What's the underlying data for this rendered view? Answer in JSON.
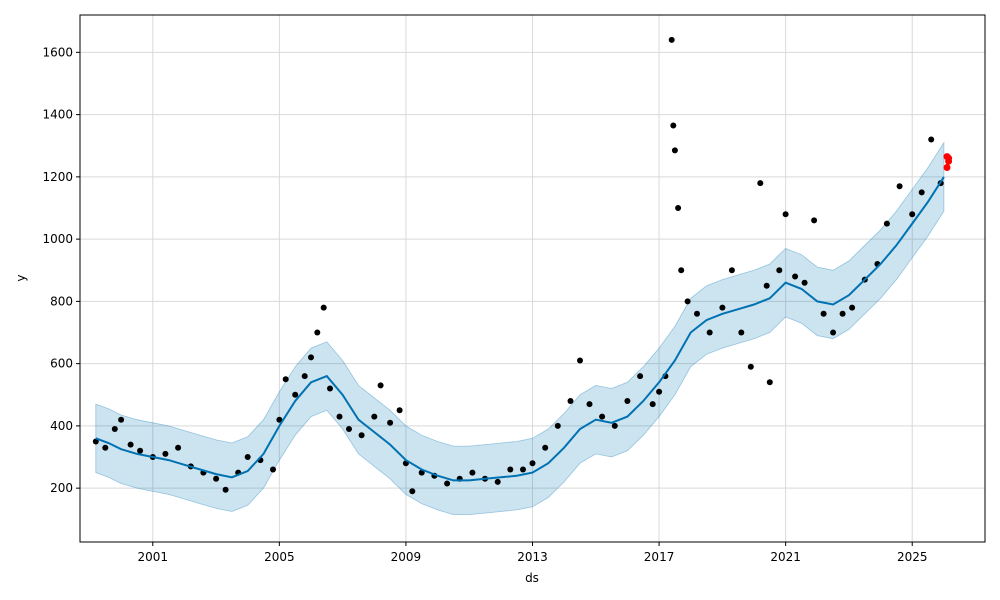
{
  "chart_data": {
    "type": "line",
    "title": "",
    "xlabel": "ds",
    "ylabel": "y",
    "xlim": [
      1998.7,
      2027.3
    ],
    "ylim": [
      27,
      1720
    ],
    "x_ticks": [
      2001,
      2005,
      2009,
      2013,
      2017,
      2021,
      2025
    ],
    "x_tick_labels": [
      "2001",
      "2005",
      "2009",
      "2013",
      "2017",
      "2021",
      "2025"
    ],
    "y_ticks": [
      200,
      400,
      600,
      800,
      1000,
      1200,
      1400,
      1600
    ],
    "y_tick_labels": [
      "200",
      "400",
      "600",
      "800",
      "1000",
      "1200",
      "1400",
      "1600"
    ],
    "grid": true,
    "colors": {
      "forecast": "#0072B2",
      "band": "#0072B2",
      "observed": "#000000",
      "highlight": "#ff0000",
      "grid": "#d9d9d9"
    },
    "forecast": {
      "x": [
        1999.2,
        1999.6,
        2000.0,
        2000.5,
        2001.0,
        2001.5,
        2002.0,
        2002.5,
        2003.0,
        2003.5,
        2004.0,
        2004.5,
        2005.0,
        2005.5,
        2006.0,
        2006.5,
        2007.0,
        2007.5,
        2008.0,
        2008.5,
        2009.0,
        2009.5,
        2010.0,
        2010.5,
        2011.0,
        2011.5,
        2012.0,
        2012.5,
        2013.0,
        2013.5,
        2014.0,
        2014.5,
        2015.0,
        2015.5,
        2016.0,
        2016.5,
        2017.0,
        2017.5,
        2018.0,
        2018.5,
        2019.0,
        2019.5,
        2020.0,
        2020.5,
        2021.0,
        2021.5,
        2022.0,
        2022.5,
        2023.0,
        2023.5,
        2024.0,
        2024.5,
        2025.0,
        2025.5,
        2026.0
      ],
      "y": [
        360,
        345,
        325,
        310,
        300,
        290,
        275,
        260,
        245,
        235,
        255,
        310,
        400,
        480,
        540,
        560,
        500,
        420,
        380,
        340,
        290,
        260,
        240,
        225,
        225,
        230,
        235,
        240,
        250,
        280,
        330,
        390,
        420,
        410,
        430,
        480,
        540,
        610,
        700,
        740,
        760,
        775,
        790,
        810,
        860,
        840,
        800,
        790,
        820,
        870,
        920,
        980,
        1050,
        1120,
        1200
      ]
    },
    "band_halfwidth": 110,
    "observed_points": [
      [
        1999.2,
        350
      ],
      [
        1999.5,
        330
      ],
      [
        1999.8,
        390
      ],
      [
        2000.0,
        420
      ],
      [
        2000.3,
        340
      ],
      [
        2000.6,
        320
      ],
      [
        2001.0,
        300
      ],
      [
        2001.4,
        310
      ],
      [
        2001.8,
        330
      ],
      [
        2002.2,
        270
      ],
      [
        2002.6,
        250
      ],
      [
        2003.0,
        230
      ],
      [
        2003.3,
        195
      ],
      [
        2003.7,
        250
      ],
      [
        2004.0,
        300
      ],
      [
        2004.4,
        290
      ],
      [
        2004.8,
        260
      ],
      [
        2005.0,
        420
      ],
      [
        2005.2,
        550
      ],
      [
        2005.5,
        500
      ],
      [
        2005.8,
        560
      ],
      [
        2006.0,
        620
      ],
      [
        2006.2,
        700
      ],
      [
        2006.4,
        780
      ],
      [
        2006.6,
        520
      ],
      [
        2006.9,
        430
      ],
      [
        2007.2,
        390
      ],
      [
        2007.6,
        370
      ],
      [
        2008.0,
        430
      ],
      [
        2008.2,
        530
      ],
      [
        2008.5,
        410
      ],
      [
        2008.8,
        450
      ],
      [
        2009.0,
        280
      ],
      [
        2009.2,
        190
      ],
      [
        2009.5,
        250
      ],
      [
        2009.9,
        240
      ],
      [
        2010.3,
        215
      ],
      [
        2010.7,
        230
      ],
      [
        2011.1,
        250
      ],
      [
        2011.5,
        230
      ],
      [
        2011.9,
        220
      ],
      [
        2012.3,
        260
      ],
      [
        2012.7,
        260
      ],
      [
        2013.0,
        280
      ],
      [
        2013.4,
        330
      ],
      [
        2013.8,
        400
      ],
      [
        2014.2,
        480
      ],
      [
        2014.5,
        610
      ],
      [
        2014.8,
        470
      ],
      [
        2015.2,
        430
      ],
      [
        2015.6,
        400
      ],
      [
        2016.0,
        480
      ],
      [
        2016.4,
        560
      ],
      [
        2016.8,
        470
      ],
      [
        2017.0,
        510
      ],
      [
        2017.2,
        560
      ],
      [
        2017.4,
        1640
      ],
      [
        2017.45,
        1365
      ],
      [
        2017.5,
        1285
      ],
      [
        2017.6,
        1100
      ],
      [
        2017.7,
        900
      ],
      [
        2017.9,
        800
      ],
      [
        2018.2,
        760
      ],
      [
        2018.6,
        700
      ],
      [
        2019.0,
        780
      ],
      [
        2019.3,
        900
      ],
      [
        2019.6,
        700
      ],
      [
        2019.9,
        590
      ],
      [
        2020.2,
        1180
      ],
      [
        2020.4,
        850
      ],
      [
        2020.5,
        540
      ],
      [
        2020.8,
        900
      ],
      [
        2021.0,
        1080
      ],
      [
        2021.3,
        880
      ],
      [
        2021.6,
        860
      ],
      [
        2021.9,
        1060
      ],
      [
        2022.2,
        760
      ],
      [
        2022.5,
        700
      ],
      [
        2022.8,
        760
      ],
      [
        2023.1,
        780
      ],
      [
        2023.5,
        870
      ],
      [
        2023.9,
        920
      ],
      [
        2024.2,
        1050
      ],
      [
        2024.6,
        1170
      ],
      [
        2025.0,
        1080
      ],
      [
        2025.3,
        1150
      ],
      [
        2025.6,
        1320
      ],
      [
        2025.9,
        1180
      ]
    ],
    "highlight_points": [
      [
        2026.1,
        1265
      ],
      [
        2026.15,
        1250
      ],
      [
        2026.1,
        1230
      ],
      [
        2026.15,
        1260
      ]
    ]
  }
}
